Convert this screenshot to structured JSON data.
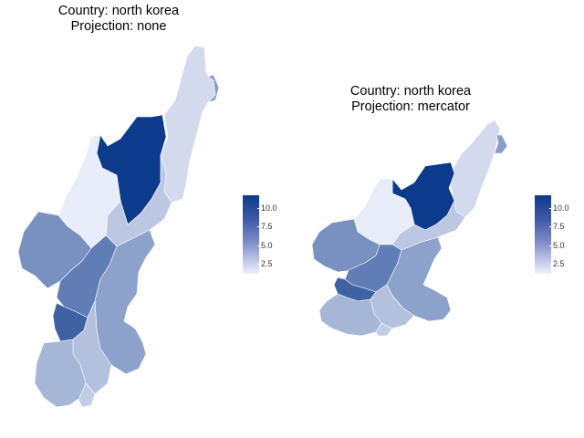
{
  "maps": [
    {
      "title_line1": "Country: north korea",
      "title_line2": "Projection: none",
      "legend_ticks": [
        "10.0",
        "7.5",
        "5.0",
        "2.5"
      ]
    },
    {
      "title_line1": "Country: north korea",
      "title_line2": "Projection: mercator",
      "legend_ticks": [
        "10.0",
        "7.5",
        "5.0",
        "2.5"
      ]
    }
  ],
  "legend": {
    "min": 1,
    "max": 11,
    "ticks": [
      10.0,
      7.5,
      5.0,
      2.5
    ],
    "colors": {
      "high": "#0c3a8c",
      "low": "#eef0fb"
    }
  },
  "region_values": {
    "ryanggang": 11,
    "north_hamgyong": 2.2,
    "rason": 5.5,
    "south_hamgyong": 3.2,
    "chagang": 1.2,
    "north_pyongan": 6.2,
    "south_pyongan": 7.3,
    "pyongyang": 8.8,
    "south_hwanghae": 4.2,
    "north_hwanghae": 3.6,
    "kangwon": 5.3,
    "kaesong": 3.0
  }
}
